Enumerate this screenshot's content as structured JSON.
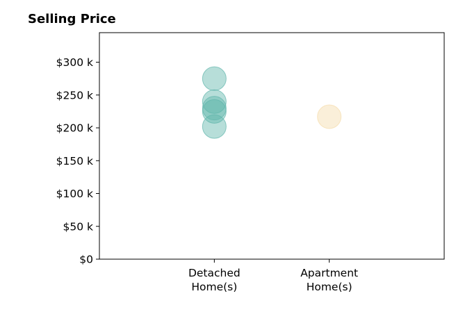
{
  "chart_data": {
    "type": "scatter",
    "title": "Selling Price",
    "xlabel": "",
    "ylabel": "",
    "categories": [
      [
        "Detached",
        "Home(s)"
      ],
      [
        "Apartment",
        "Home(s)"
      ]
    ],
    "yticks": [
      {
        "value": 0,
        "label": "$0"
      },
      {
        "value": 50000,
        "label": "$50 k"
      },
      {
        "value": 100000,
        "label": "$100 k"
      },
      {
        "value": 150000,
        "label": "$150 k"
      },
      {
        "value": 200000,
        "label": "$200 k"
      },
      {
        "value": 250000,
        "label": "$250 k"
      },
      {
        "value": 300000,
        "label": "$300 k"
      }
    ],
    "ylim": [
      0,
      345000
    ],
    "xlim": [
      -1,
      2
    ],
    "grid": false,
    "series": [
      {
        "category_index": 0,
        "color": "#5fb5ab",
        "values": [
          275000,
          240000,
          230000,
          225000,
          202000
        ]
      },
      {
        "category_index": 1,
        "color": "#f5dcaa",
        "values": [
          217000
        ]
      }
    ]
  }
}
